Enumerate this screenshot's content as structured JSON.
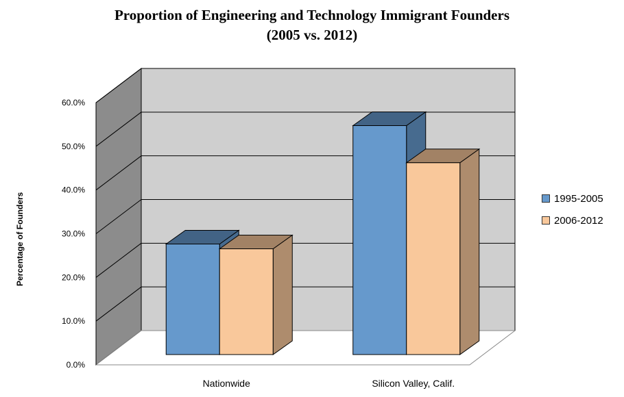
{
  "chart_data": {
    "type": "bar",
    "title": "Proportion of Engineering and Technology Immigrant Founders",
    "subtitle": "(2005 vs. 2012)",
    "ylabel": "Percentage of Founders",
    "xlabel": "",
    "categories": [
      "Nationwide",
      "Silicon Valley, Calif."
    ],
    "series": [
      {
        "name": "1995-2005",
        "values": [
          25.3,
          52.4
        ],
        "color": "#6699cc"
      },
      {
        "name": "2006-2012",
        "values": [
          24.2,
          43.9
        ],
        "color": "#f9c89b"
      }
    ],
    "ylim": [
      0,
      60
    ],
    "yticks": [
      "0.0%",
      "10.0%",
      "20.0%",
      "30.0%",
      "40.0%",
      "50.0%",
      "60.0%"
    ],
    "grid": true,
    "legend_position": "right",
    "style": "3d"
  }
}
